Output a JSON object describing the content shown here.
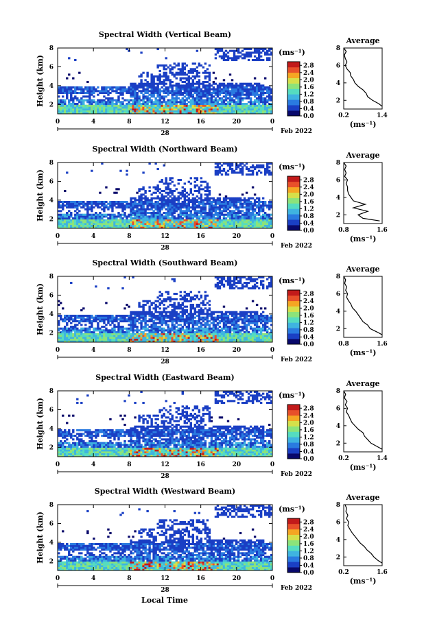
{
  "figure": {
    "bottom_xlabel": "Local Time"
  },
  "colorbar": {
    "unit": "(ms⁻¹)",
    "colors": [
      "#08086b",
      "#1a3fc4",
      "#2a7be0",
      "#3fb4e0",
      "#55dcc0",
      "#8ce37a",
      "#d6e04a",
      "#f5a623",
      "#e8502a",
      "#c21a1a"
    ]
  },
  "chart_data": [
    {
      "type": "heatmap",
      "title": "Spectral Width (Vertical Beam)",
      "ylabel": "Height (km)",
      "yticks": [
        "2",
        "4",
        "6",
        "8"
      ],
      "xticks": [
        "0",
        "4",
        "8",
        "12",
        "16",
        "20",
        "0"
      ],
      "date_day": "28",
      "date_suffix": "Feb 2022",
      "xlim": [
        0,
        24
      ],
      "ylim": [
        1,
        8
      ],
      "colorbar_ticks": [
        "2.8",
        "2.4",
        "2.0",
        "1.6",
        "1.2",
        "0.8",
        "0.4",
        "0.0"
      ],
      "avg_title": "Average",
      "avg_xticks": [
        "0.2",
        "1.4"
      ],
      "avg_xlim": [
        0.2,
        1.4
      ],
      "avg_yticks": [
        "2",
        "4",
        "6",
        "8"
      ],
      "avg_xlabel": "(ms⁻¹)",
      "avg_profile": {
        "height": [
          1.3,
          1.6,
          2.0,
          2.4,
          2.8,
          3.2,
          3.6,
          4.0,
          4.4,
          4.8,
          5.2,
          5.6,
          6.0,
          6.4,
          6.8,
          7.2,
          7.6,
          8.0
        ],
        "width": [
          1.4,
          1.3,
          1.1,
          0.95,
          0.9,
          0.8,
          0.65,
          0.55,
          0.5,
          0.42,
          0.4,
          0.3,
          0.25,
          0.3,
          0.25,
          0.22,
          0.28,
          0.2
        ]
      }
    },
    {
      "type": "heatmap",
      "title": "Spectral Width (Northward Beam)",
      "ylabel": "Height (km)",
      "yticks": [
        "2",
        "4",
        "6",
        "8"
      ],
      "xticks": [
        "0",
        "4",
        "8",
        "12",
        "16",
        "20",
        "0"
      ],
      "date_day": "28",
      "date_suffix": "Feb 2022",
      "xlim": [
        0,
        24
      ],
      "ylim": [
        1,
        8
      ],
      "colorbar_ticks": [
        "2.8",
        "2.4",
        "2.0",
        "1.6",
        "1.2",
        "0.8",
        "0.4",
        "0.0"
      ],
      "avg_title": "Average",
      "avg_xticks": [
        "0.8",
        "1.6"
      ],
      "avg_xlim": [
        0.8,
        1.6
      ],
      "avg_yticks": [
        "2",
        "4",
        "6",
        "8"
      ],
      "avg_xlabel": "(ms⁻¹)",
      "avg_profile": {
        "height": [
          1.3,
          1.6,
          2.0,
          2.4,
          2.8,
          3.2,
          3.6,
          4.0,
          4.4,
          4.8,
          5.2,
          5.6,
          6.0,
          6.4,
          6.8,
          7.2,
          7.6,
          8.0
        ],
        "width": [
          1.55,
          1.2,
          1.1,
          1.3,
          1.0,
          1.25,
          1.0,
          0.95,
          0.9,
          0.88,
          0.88,
          0.85,
          0.88,
          0.82,
          0.85,
          0.82,
          0.85,
          0.8
        ]
      }
    },
    {
      "type": "heatmap",
      "title": "Spectral Width (Southward Beam)",
      "ylabel": "Height (km)",
      "yticks": [
        "2",
        "4",
        "6",
        "8"
      ],
      "xticks": [
        "0",
        "4",
        "8",
        "12",
        "16",
        "20",
        "0"
      ],
      "date_day": "28",
      "date_suffix": "Feb 2022",
      "xlim": [
        0,
        24
      ],
      "ylim": [
        1,
        8
      ],
      "colorbar_ticks": [
        "2.8",
        "2.4",
        "2.0",
        "1.6",
        "1.2",
        "0.8",
        "0.4",
        "0.0"
      ],
      "avg_title": "Average",
      "avg_xticks": [
        "0.8",
        "1.6"
      ],
      "avg_xlim": [
        0.8,
        1.6
      ],
      "avg_yticks": [
        "2",
        "4",
        "6",
        "8"
      ],
      "avg_xlabel": "(ms⁻¹)",
      "avg_profile": {
        "height": [
          1.3,
          1.6,
          2.0,
          2.4,
          2.8,
          3.2,
          3.6,
          4.0,
          4.4,
          4.8,
          5.2,
          5.6,
          6.0,
          6.4,
          6.8,
          7.2,
          7.6,
          8.0
        ],
        "width": [
          1.6,
          1.5,
          1.35,
          1.3,
          1.2,
          1.15,
          1.1,
          1.05,
          0.98,
          0.95,
          0.9,
          0.86,
          0.88,
          0.84,
          0.86,
          0.82,
          0.84,
          0.8
        ]
      }
    },
    {
      "type": "heatmap",
      "title": "Spectral Width (Eastward Beam)",
      "ylabel": "Height (km)",
      "yticks": [
        "2",
        "4",
        "6",
        "8"
      ],
      "xticks": [
        "0",
        "4",
        "8",
        "12",
        "16",
        "20",
        "0"
      ],
      "date_day": "28",
      "date_suffix": "Feb 2022",
      "xlim": [
        0,
        24
      ],
      "ylim": [
        1,
        8
      ],
      "colorbar_ticks": [
        "2.8",
        "2.4",
        "2.0",
        "1.6",
        "1.2",
        "0.8",
        "0.4",
        "0.0"
      ],
      "avg_title": "Average",
      "avg_xticks": [
        "0.2",
        "1.4"
      ],
      "avg_xlim": [
        0.2,
        1.4
      ],
      "avg_yticks": [
        "2",
        "4",
        "6",
        "8"
      ],
      "avg_xlabel": "(ms⁻¹)",
      "avg_profile": {
        "height": [
          1.3,
          1.6,
          2.0,
          2.4,
          2.8,
          3.2,
          3.6,
          4.0,
          4.4,
          4.8,
          5.2,
          5.6,
          6.0,
          6.4,
          6.8,
          7.2,
          7.6,
          8.0
        ],
        "width": [
          1.4,
          1.25,
          1.05,
          0.95,
          0.85,
          0.8,
          0.65,
          0.55,
          0.45,
          0.4,
          0.35,
          0.28,
          0.32,
          0.25,
          0.3,
          0.22,
          0.26,
          0.2
        ]
      }
    },
    {
      "type": "heatmap",
      "title": "Spectral Width (Westward Beam)",
      "ylabel": "Height (km)",
      "yticks": [
        "2",
        "4",
        "6",
        "8"
      ],
      "xticks": [
        "0",
        "4",
        "8",
        "12",
        "16",
        "20",
        "0"
      ],
      "date_day": "28",
      "date_suffix": "Feb 2022",
      "xlim": [
        0,
        24
      ],
      "ylim": [
        1,
        8
      ],
      "colorbar_ticks": [
        "2.8",
        "2.4",
        "2.0",
        "1.6",
        "1.2",
        "0.8",
        "0.4",
        "0.0"
      ],
      "avg_title": "Average",
      "avg_xticks": [
        "0.2",
        "1.6"
      ],
      "avg_xlim": [
        0.2,
        1.6
      ],
      "avg_yticks": [
        "2",
        "4",
        "6",
        "8"
      ],
      "avg_xlabel": "(ms⁻¹)",
      "avg_profile": {
        "height": [
          1.3,
          1.6,
          2.0,
          2.4,
          2.8,
          3.2,
          3.6,
          4.0,
          4.4,
          4.8,
          5.2,
          5.6,
          6.0,
          6.4,
          6.8,
          7.2,
          7.6,
          8.0
        ],
        "width": [
          1.6,
          1.45,
          1.3,
          1.2,
          1.05,
          0.95,
          0.8,
          0.7,
          0.6,
          0.5,
          0.42,
          0.35,
          0.38,
          0.3,
          0.35,
          0.28,
          0.3,
          0.25
        ]
      }
    }
  ]
}
